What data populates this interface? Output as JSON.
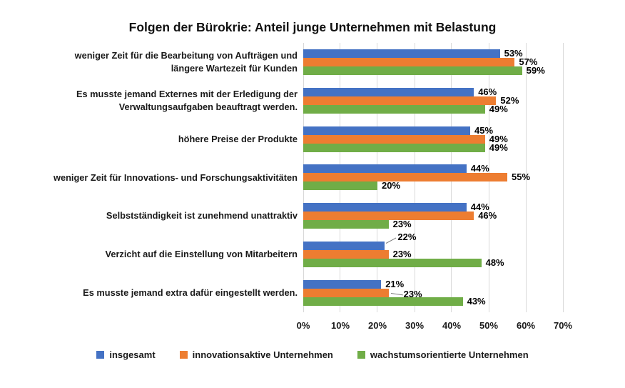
{
  "title": "Folgen der Bürokrie: Anteil junge Unternehmen mit Belastung",
  "chart_data": {
    "type": "bar",
    "orientation": "horizontal",
    "title": "Folgen der Bürokrie: Anteil junge Unternehmen mit Belastung",
    "categories": [
      "weniger Zeit für die Bearbeitung von Aufträgen und\nlängere Wartezeit für Kunden",
      "Es musste jemand Externes mit der Erledigung der\nVerwaltungsaufgaben beauftragt werden.",
      "höhere Preise der Produkte",
      "weniger Zeit für Innovations- und Forschungsaktivitäten",
      "Selbstständigkeit ist zunehmend unattraktiv",
      "Verzicht auf die Einstellung von Mitarbeitern",
      "Es musste jemand extra dafür eingestellt werden."
    ],
    "series": [
      {
        "name": "insgesamt",
        "color": "#4472C4",
        "values": [
          53,
          46,
          45,
          44,
          44,
          22,
          21
        ]
      },
      {
        "name": "innovationsaktive Unternehmen",
        "color": "#ED7D31",
        "values": [
          57,
          52,
          49,
          55,
          46,
          23,
          23
        ]
      },
      {
        "name": "wachstumsorientierte Unternehmen",
        "color": "#70AD47",
        "values": [
          59,
          49,
          49,
          20,
          23,
          48,
          43
        ]
      }
    ],
    "value_label_suffix": "%",
    "xlabel": "",
    "ylabel": "",
    "xlim": [
      0,
      70
    ],
    "xticks": [
      "0%",
      "10%",
      "20%",
      "30%",
      "40%",
      "50%",
      "60%",
      "70%"
    ],
    "grid": true,
    "legend_position": "bottom",
    "callouts": [
      {
        "category_index": 5,
        "series_index": 0,
        "direction": "up"
      },
      {
        "category_index": 6,
        "series_index": 1,
        "direction": "right"
      }
    ]
  }
}
